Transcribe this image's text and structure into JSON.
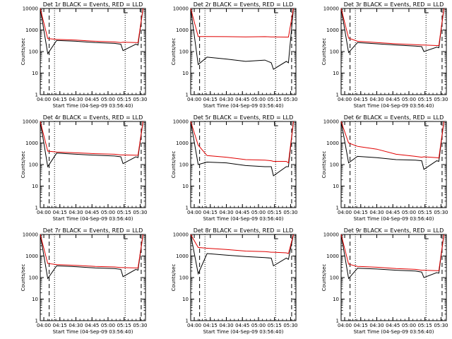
{
  "x_ticks": [
    "04:00",
    "04:15",
    "04:30",
    "04:45",
    "05:00",
    "05:15",
    "05:30"
  ],
  "y_ticks": [
    "1",
    "10",
    "100",
    "1000",
    "10000"
  ],
  "ylabel": "Counts/sec",
  "xlabel": "Start Time (04-Sep-09 03:56:40)",
  "colors": {
    "events": "#000000",
    "lld": "#e00000",
    "axes": "#000000"
  },
  "chart_data": [
    {
      "type": "line",
      "title": "Det 1r BLACK = Events, RED = LLD",
      "x": [
        "03:56:40",
        "04:03:40",
        "04:12:00",
        "04:30:00",
        "04:48:00",
        "05:06:00",
        "05:12:00",
        "05:14:00",
        "05:26:00",
        "05:28:00",
        "05:32:40"
      ],
      "series": [
        {
          "name": "Events",
          "values": [
            10000,
            80,
            330,
            300,
            260,
            240,
            220,
            110,
            220,
            200,
            10000
          ]
        },
        {
          "name": "LLD",
          "values": [
            10000,
            400,
            370,
            340,
            300,
            280,
            260,
            270,
            260,
            260,
            10000
          ]
        }
      ],
      "ylim": [
        1,
        10000
      ],
      "yscale": "log",
      "dashed_lines": [
        "04:05",
        "05:31"
      ],
      "dotted_lines": [
        "04:10",
        "05:16"
      ]
    },
    {
      "type": "line",
      "title": "Det 2r BLACK = Events, RED = LLD",
      "x": [
        "03:56:40",
        "04:03:40",
        "04:12:00",
        "04:30:00",
        "04:48:00",
        "05:06:00",
        "05:12:00",
        "05:14:00",
        "05:26:00",
        "05:28:00",
        "05:32:40"
      ],
      "series": [
        {
          "name": "Events",
          "values": [
            10000,
            25,
            55,
            45,
            35,
            40,
            30,
            15,
            35,
            30,
            10000
          ]
        },
        {
          "name": "LLD",
          "values": [
            10000,
            500,
            500,
            490,
            480,
            490,
            480,
            480,
            470,
            470,
            10000
          ]
        }
      ],
      "ylim": [
        1,
        10000
      ],
      "yscale": "log",
      "dashed_lines": [
        "04:05",
        "05:31"
      ],
      "dotted_lines": [
        "04:10",
        "05:16"
      ]
    },
    {
      "type": "line",
      "title": "Det 3r BLACK = Events, RED = LLD",
      "x": [
        "03:56:40",
        "04:03:40",
        "04:12:00",
        "04:30:00",
        "04:48:00",
        "05:06:00",
        "05:12:00",
        "05:14:00",
        "05:26:00",
        "05:28:00",
        "05:32:40"
      ],
      "series": [
        {
          "name": "Events",
          "values": [
            10000,
            90,
            260,
            230,
            200,
            180,
            170,
            100,
            160,
            150,
            10000
          ]
        },
        {
          "name": "LLD",
          "values": [
            10000,
            420,
            300,
            260,
            230,
            210,
            200,
            200,
            190,
            190,
            10000
          ]
        }
      ],
      "ylim": [
        1,
        10000
      ],
      "yscale": "log",
      "dashed_lines": [
        "04:05",
        "05:31"
      ],
      "dotted_lines": [
        "04:10",
        "05:16"
      ]
    },
    {
      "type": "line",
      "title": "Det 4r BLACK = Events, RED = LLD",
      "x": [
        "03:56:40",
        "04:03:40",
        "04:12:00",
        "04:30:00",
        "04:48:00",
        "05:06:00",
        "05:12:00",
        "05:14:00",
        "05:26:00",
        "05:28:00",
        "05:32:40"
      ],
      "series": [
        {
          "name": "Events",
          "values": [
            10000,
            80,
            340,
            300,
            270,
            250,
            230,
            110,
            230,
            210,
            10000
          ]
        },
        {
          "name": "LLD",
          "values": [
            10000,
            420,
            380,
            350,
            320,
            300,
            280,
            280,
            270,
            270,
            10000
          ]
        }
      ],
      "ylim": [
        1,
        10000
      ],
      "yscale": "log",
      "dashed_lines": [
        "04:05",
        "05:31"
      ],
      "dotted_lines": [
        "04:10",
        "05:16"
      ]
    },
    {
      "type": "line",
      "title": "Det 5r BLACK = Events, RED = LLD",
      "x": [
        "03:56:40",
        "04:03:40",
        "04:12:00",
        "04:30:00",
        "04:48:00",
        "05:06:00",
        "05:12:00",
        "05:14:00",
        "05:26:00",
        "05:28:00",
        "05:32:40"
      ],
      "series": [
        {
          "name": "Events",
          "values": [
            10000,
            100,
            130,
            120,
            90,
            80,
            80,
            30,
            80,
            80,
            10000
          ]
        },
        {
          "name": "LLD",
          "values": [
            10000,
            800,
            260,
            220,
            170,
            160,
            150,
            140,
            140,
            120,
            10000
          ]
        }
      ],
      "ylim": [
        1,
        10000
      ],
      "yscale": "log",
      "dashed_lines": [
        "04:05",
        "05:31"
      ],
      "dotted_lines": [
        "04:10",
        "05:16"
      ]
    },
    {
      "type": "line",
      "title": "Det 6r BLACK = Events, RED = LLD",
      "x": [
        "03:56:40",
        "04:03:40",
        "04:12:00",
        "04:30:00",
        "04:48:00",
        "05:06:00",
        "05:12:00",
        "05:14:00",
        "05:26:00",
        "05:28:00",
        "05:32:40"
      ],
      "series": [
        {
          "name": "Events",
          "values": [
            10000,
            120,
            240,
            210,
            170,
            160,
            150,
            60,
            150,
            140,
            10000
          ]
        },
        {
          "name": "LLD",
          "values": [
            10000,
            1000,
            700,
            520,
            300,
            240,
            220,
            230,
            210,
            200,
            10000
          ]
        }
      ],
      "ylim": [
        1,
        10000
      ],
      "yscale": "log",
      "dashed_lines": [
        "04:05",
        "05:31"
      ],
      "dotted_lines": [
        "04:10",
        "05:16"
      ]
    },
    {
      "type": "line",
      "title": "Det 7r BLACK = Events, RED = LLD",
      "x": [
        "03:56:40",
        "04:03:40",
        "04:12:00",
        "04:30:00",
        "04:48:00",
        "05:06:00",
        "05:12:00",
        "05:14:00",
        "05:26:00",
        "05:28:00",
        "05:32:40"
      ],
      "series": [
        {
          "name": "Events",
          "values": [
            10000,
            90,
            350,
            320,
            280,
            260,
            240,
            110,
            240,
            220,
            10000
          ]
        },
        {
          "name": "LLD",
          "values": [
            10000,
            450,
            400,
            370,
            330,
            310,
            290,
            290,
            280,
            280,
            10000
          ]
        }
      ],
      "ylim": [
        1,
        10000
      ],
      "yscale": "log",
      "dashed_lines": [
        "04:05",
        "05:31"
      ],
      "dotted_lines": [
        "04:10",
        "05:16"
      ]
    },
    {
      "type": "line",
      "title": "Det 8r BLACK = Events, RED = LLD",
      "x": [
        "03:56:40",
        "04:03:40",
        "04:12:00",
        "04:30:00",
        "04:48:00",
        "05:06:00",
        "05:12:00",
        "05:14:00",
        "05:26:00",
        "05:28:00",
        "05:32:40"
      ],
      "series": [
        {
          "name": "Events",
          "values": [
            10000,
            150,
            1300,
            1100,
            950,
            850,
            800,
            350,
            800,
            700,
            10000
          ]
        },
        {
          "name": "LLD",
          "values": [
            10000,
            2500,
            2300,
            2000,
            1700,
            1600,
            1500,
            1500,
            1400,
            1300,
            10000
          ]
        }
      ],
      "ylim": [
        1,
        10000
      ],
      "yscale": "log",
      "dashed_lines": [
        "04:05",
        "05:31"
      ],
      "dotted_lines": [
        "04:10",
        "05:16"
      ]
    },
    {
      "type": "line",
      "title": "Det 9r BLACK = Events, RED = LLD",
      "x": [
        "03:56:40",
        "04:03:40",
        "04:12:00",
        "04:30:00",
        "04:48:00",
        "05:06:00",
        "05:12:00",
        "05:14:00",
        "05:26:00",
        "05:28:00",
        "05:32:40"
      ],
      "series": [
        {
          "name": "Events",
          "values": [
            10000,
            90,
            270,
            250,
            220,
            200,
            180,
            100,
            170,
            160,
            10000
          ]
        },
        {
          "name": "LLD",
          "values": [
            10000,
            420,
            330,
            300,
            260,
            240,
            220,
            220,
            210,
            210,
            10000
          ]
        }
      ],
      "ylim": [
        1,
        10000
      ],
      "yscale": "log",
      "dashed_lines": [
        "04:05",
        "05:31"
      ],
      "dotted_lines": [
        "04:10",
        "05:16"
      ]
    }
  ]
}
